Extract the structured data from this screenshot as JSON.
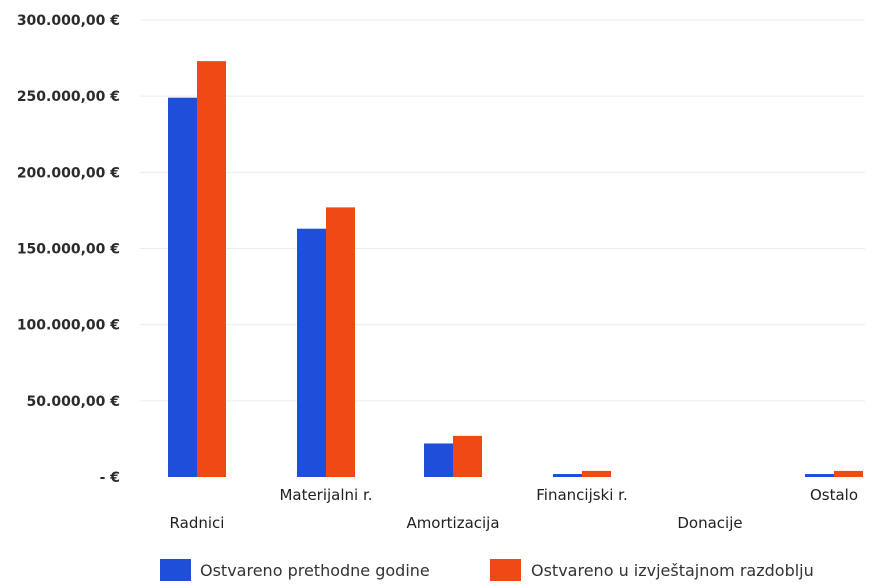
{
  "chart_data": {
    "type": "bar",
    "categories": [
      "Radnici",
      "Materijalni r.",
      "Amortizacija",
      "Financijski r.",
      "Donacije",
      "Ostalo"
    ],
    "series": [
      {
        "name": "Ostvareno prethodne godine",
        "values": [
          249000,
          163000,
          22000,
          1000,
          0,
          1000
        ]
      },
      {
        "name": "Ostvareno u izvještajnom razdoblju",
        "values": [
          273000,
          177000,
          27000,
          4000,
          0,
          4000
        ]
      }
    ],
    "y_ticks": [
      {
        "value": 0,
        "label": "-  €"
      },
      {
        "value": 50000,
        "label": "50.000,00 €"
      },
      {
        "value": 100000,
        "label": "100.000,00 €"
      },
      {
        "value": 150000,
        "label": "150.000,00 €"
      },
      {
        "value": 200000,
        "label": "200.000,00 €"
      },
      {
        "value": 250000,
        "label": "250.000,00 €"
      },
      {
        "value": 300000,
        "label": "300.000,00 €"
      }
    ],
    "ylim": [
      0,
      300000
    ],
    "grid": true,
    "legend_position": "bottom",
    "colors": [
      "#1f4fd8",
      "#ef4a16"
    ]
  }
}
